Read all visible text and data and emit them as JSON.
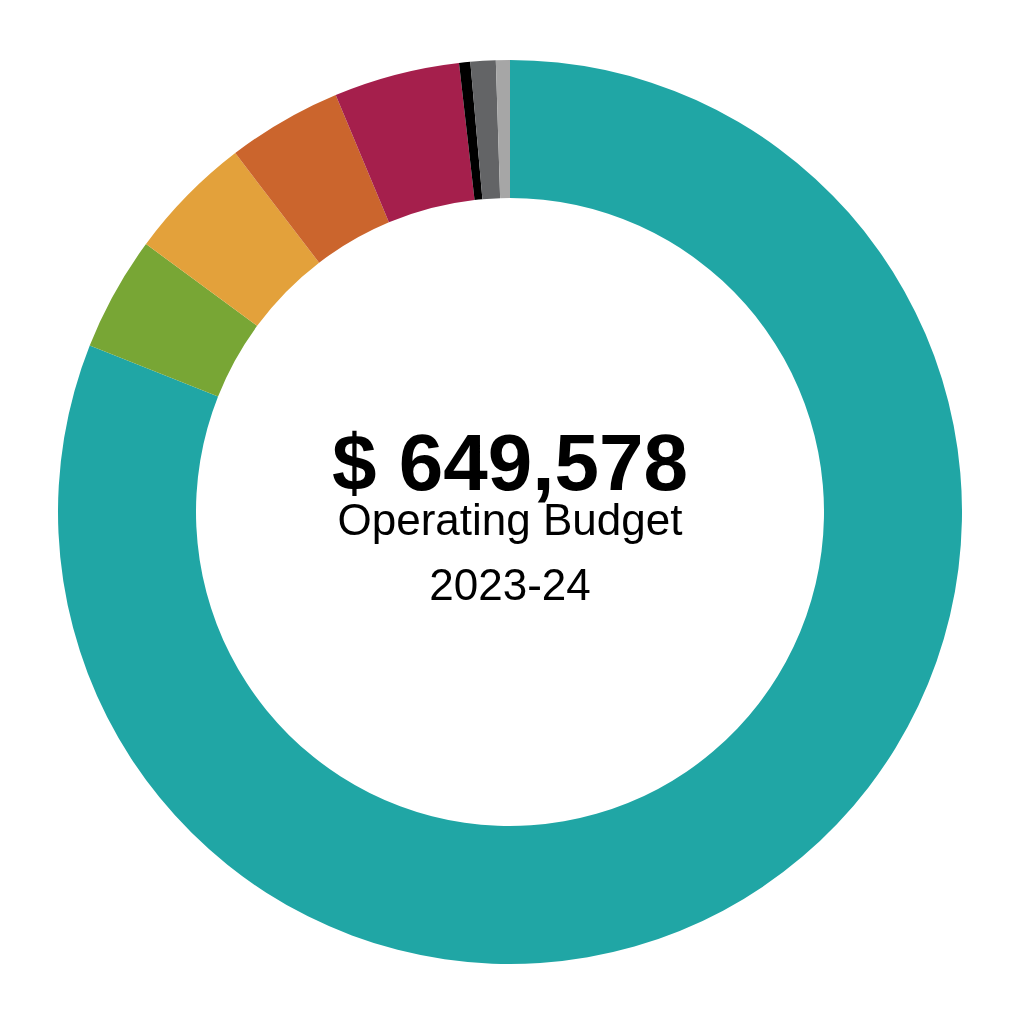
{
  "chart_data": {
    "type": "donut",
    "title": "$ 649,578",
    "subtitle": "Operating Budget 2023-24",
    "categories": [
      null,
      null,
      null,
      null,
      null,
      null,
      null,
      null
    ],
    "values": [
      81.0,
      4.1,
      4.5,
      4.1,
      4.5,
      0.4,
      0.9,
      0.5
    ],
    "colors": [
      "#20a6a5",
      "#78a635",
      "#e3a13b",
      "#cb652d",
      "#a51f4c",
      "#000000",
      "#636466",
      "#a6a6a6"
    ],
    "legend": false
  }
}
